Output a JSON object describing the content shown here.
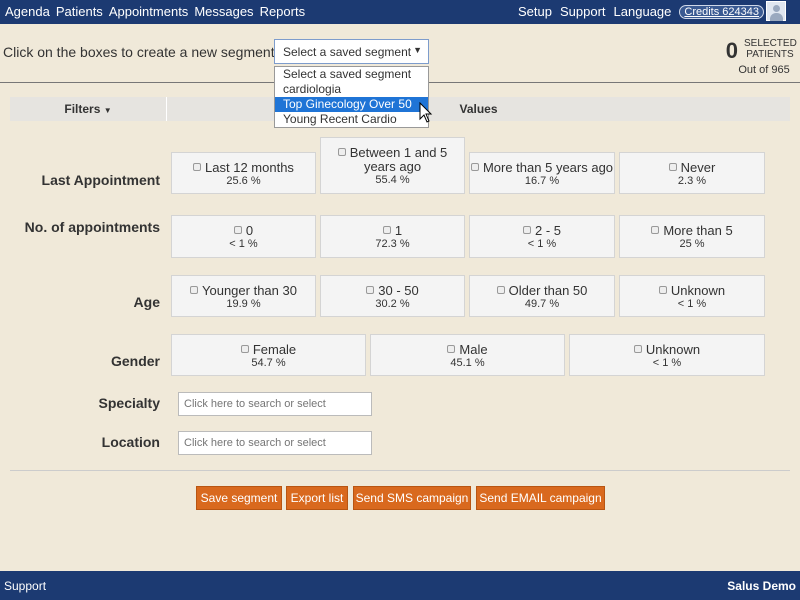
{
  "nav": {
    "left": [
      "Agenda",
      "Patients",
      "Appointments",
      "Messages",
      "Reports"
    ],
    "right": [
      "Setup",
      "Support",
      "Language"
    ],
    "credits": "Credits 624343"
  },
  "segment": {
    "prompt": "Click on the boxes to create a new segment or",
    "select_value": "Select a saved segment",
    "options": [
      "Select a saved segment",
      "cardiologia",
      "Top Ginecology Over 50",
      "Young Recent Cardio"
    ],
    "highlighted": "Top Ginecology Over 50"
  },
  "selected": {
    "count": "0",
    "label": "SELECTED PATIENTS",
    "out_of": "Out of 965"
  },
  "filters": {
    "filters_label": "Filters",
    "values_label": "Values"
  },
  "rows": [
    {
      "label": "Last Appointment",
      "items": [
        {
          "t": "Last 12 months",
          "p": "25.6 %"
        },
        {
          "t": "Between 1 and 5 years ago",
          "p": "55.4 %"
        },
        {
          "t": "More than 5 years ago",
          "p": "16.7 %"
        },
        {
          "t": "Never",
          "p": "2.3 %"
        }
      ]
    },
    {
      "label": "No. of appointments",
      "items": [
        {
          "t": "0",
          "p": "< 1 %"
        },
        {
          "t": "1",
          "p": "72.3 %"
        },
        {
          "t": "2 - 5",
          "p": "< 1 %"
        },
        {
          "t": "More than 5",
          "p": "25 %"
        }
      ]
    },
    {
      "label": "Age",
      "items": [
        {
          "t": "Younger than 30",
          "p": "19.9 %"
        },
        {
          "t": "30 - 50",
          "p": "30.2 %"
        },
        {
          "t": "Older than 50",
          "p": "49.7 %"
        },
        {
          "t": "Unknown",
          "p": "< 1 %"
        }
      ]
    },
    {
      "label": "Gender",
      "items": [
        {
          "t": "Female",
          "p": "54.7 %"
        },
        {
          "t": "Male",
          "p": "45.1 %"
        },
        {
          "t": "Unknown",
          "p": "< 1 %"
        }
      ]
    }
  ],
  "specialty": {
    "label": "Specialty",
    "placeholder": "Click here to search or select"
  },
  "location": {
    "label": "Location",
    "placeholder": "Click here to search or select"
  },
  "buttons": [
    "Save segment",
    "Export list",
    "Send SMS campaign",
    "Send EMAIL campaign"
  ],
  "footer": {
    "left": "Support",
    "right": "Salus Demo"
  },
  "colors": {
    "nav": "#1c3a72",
    "button": "#d9691e",
    "highlight": "#1f74d6",
    "background": "#f0e9d9"
  }
}
